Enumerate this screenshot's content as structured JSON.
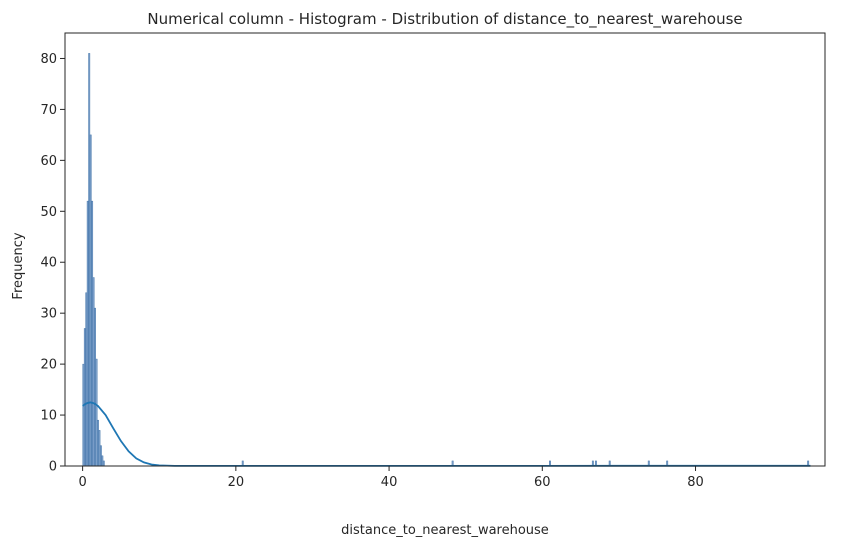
{
  "chart_data": {
    "type": "bar",
    "title": "Numerical column - Histogram - Distribution of distance_to_nearest_warehouse",
    "xlabel": "distance_to_nearest_warehouse",
    "ylabel": "Frequency",
    "xlim": [
      -2.3,
      96.9
    ],
    "ylim": [
      0,
      85
    ],
    "xticks": [
      0,
      20,
      40,
      60,
      80
    ],
    "yticks": [
      0,
      10,
      20,
      30,
      40,
      50,
      60,
      70,
      80
    ],
    "grid": false,
    "bin_width": 0.19,
    "bars": [
      {
        "x": 0.1,
        "y": 20
      },
      {
        "x": 0.29,
        "y": 27
      },
      {
        "x": 0.48,
        "y": 34
      },
      {
        "x": 0.67,
        "y": 52
      },
      {
        "x": 0.86,
        "y": 81
      },
      {
        "x": 1.05,
        "y": 65
      },
      {
        "x": 1.24,
        "y": 52
      },
      {
        "x": 1.43,
        "y": 37
      },
      {
        "x": 1.62,
        "y": 31
      },
      {
        "x": 1.81,
        "y": 21
      },
      {
        "x": 2.0,
        "y": 9
      },
      {
        "x": 2.19,
        "y": 7
      },
      {
        "x": 2.38,
        "y": 4
      },
      {
        "x": 2.57,
        "y": 2
      },
      {
        "x": 2.76,
        "y": 1
      },
      {
        "x": 20.9,
        "y": 1
      },
      {
        "x": 48.3,
        "y": 1
      },
      {
        "x": 61.0,
        "y": 1
      },
      {
        "x": 66.6,
        "y": 1
      },
      {
        "x": 67.0,
        "y": 1
      },
      {
        "x": 68.8,
        "y": 1
      },
      {
        "x": 73.9,
        "y": 1
      },
      {
        "x": 76.3,
        "y": 1
      },
      {
        "x": 94.7,
        "y": 1
      }
    ],
    "kde": {
      "x": [
        0,
        0.5,
        1,
        1.5,
        2,
        3,
        4,
        5,
        6,
        7,
        8,
        9,
        10,
        12,
        15,
        20,
        30,
        40,
        50,
        60,
        70,
        80,
        90,
        95
      ],
      "y": [
        11.8,
        12.3,
        12.5,
        12.3,
        11.8,
        10.0,
        7.4,
        4.9,
        2.9,
        1.5,
        0.7,
        0.3,
        0.12,
        0.03,
        0.02,
        0.02,
        0.02,
        0.02,
        0.02,
        0.03,
        0.04,
        0.04,
        0.04,
        0.04
      ]
    }
  }
}
